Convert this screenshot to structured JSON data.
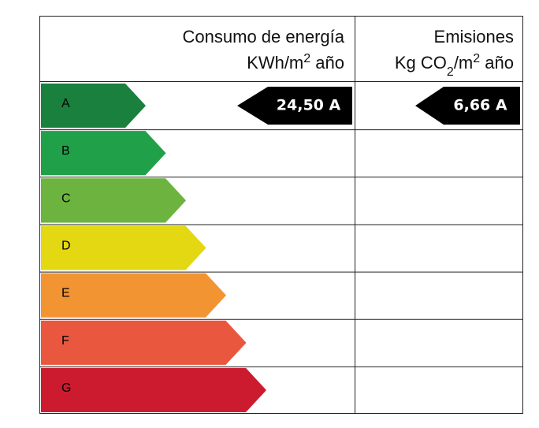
{
  "header": {
    "consumption": {
      "line1": "Consumo de energía",
      "line2": [
        "KWh/m",
        "2",
        " año"
      ]
    },
    "emissions": {
      "line1": "Emisiones",
      "line2": [
        "Kg CO",
        "2",
        "/m",
        "2",
        " año"
      ]
    }
  },
  "classes": [
    {
      "letter": "A",
      "color": "#19803d"
    },
    {
      "letter": "B",
      "color": "#1fa049"
    },
    {
      "letter": "C",
      "color": "#6db33f"
    },
    {
      "letter": "D",
      "color": "#e3d812"
    },
    {
      "letter": "E",
      "color": "#f39433"
    },
    {
      "letter": "F",
      "color": "#e9573f"
    },
    {
      "letter": "G",
      "color": "#cc1b2f"
    }
  ],
  "rating": {
    "consumption": "24,50 A",
    "emissions": "6,66 A"
  }
}
